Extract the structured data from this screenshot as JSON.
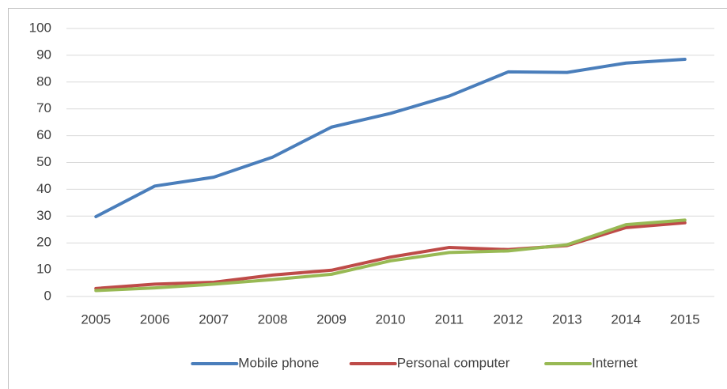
{
  "chart_data": {
    "type": "line",
    "categories": [
      "2005",
      "2006",
      "2007",
      "2008",
      "2009",
      "2010",
      "2011",
      "2012",
      "2013",
      "2014",
      "2015"
    ],
    "series": [
      {
        "name": "Mobile phone",
        "color": "#4a7ebb",
        "values": [
          29.8,
          41.2,
          44.5,
          52,
          63.2,
          68.3,
          74.8,
          83.8,
          83.6,
          87.1,
          88.5
        ]
      },
      {
        "name": "Personal computer",
        "color": "#be4b48",
        "values": [
          3,
          4.6,
          5.3,
          8,
          9.8,
          14.7,
          18.3,
          17.5,
          19,
          25.7,
          27.5
        ]
      },
      {
        "name": "Internet",
        "color": "#98b954",
        "values": [
          2.2,
          3.2,
          4.6,
          6.3,
          8.3,
          13.3,
          16.4,
          17,
          19.3,
          26.8,
          28.5
        ]
      }
    ],
    "ylim": [
      0,
      100
    ],
    "yticks": [
      0,
      10,
      20,
      30,
      40,
      50,
      60,
      70,
      80,
      90,
      100
    ],
    "grid": true,
    "legend": "bottom"
  }
}
